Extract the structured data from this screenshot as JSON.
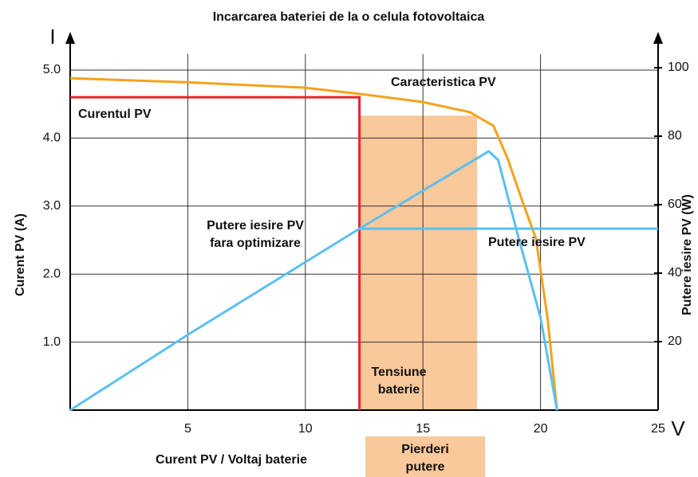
{
  "chart_data": {
    "type": "line",
    "title": "Incarcarea bateriei de la o celula fotovoltaica",
    "x_label": "Curent PV / Voltaj baterie",
    "y_label": "Curent PV (A)",
    "y2_label": "Putere iesire PV (W)",
    "x_axis_symbol": "V",
    "y_axis_symbol": "I",
    "xlim": [
      0,
      25
    ],
    "xticks": [
      5,
      10,
      15,
      20,
      25
    ],
    "ylim": [
      0,
      5
    ],
    "yticks": [
      {
        "value": 1,
        "label": "1.0"
      },
      {
        "value": 2,
        "label": "2.0"
      },
      {
        "value": 3,
        "label": "3.0"
      },
      {
        "value": 4,
        "label": "4.0"
      },
      {
        "value": 5,
        "label": "5.0"
      }
    ],
    "y2lim": [
      0,
      100
    ],
    "y2ticks": [
      20,
      40,
      60,
      80,
      100
    ],
    "grid": true,
    "shade": {
      "x": [
        12.3,
        17.3
      ],
      "y": 4.33,
      "color": "#f9c89b"
    },
    "series": [
      {
        "color": "#f5a21c",
        "x": [
          0,
          5,
          10,
          12.3,
          15,
          17,
          18,
          18.6,
          19.3,
          19.8,
          20.3,
          20.7
        ],
        "values": [
          4.88,
          4.82,
          4.74,
          4.65,
          4.53,
          4.38,
          4.18,
          3.7,
          3.0,
          2.53,
          1.35,
          0
        ]
      },
      {
        "color": "#e8232a",
        "x": [
          0,
          12.3,
          12.3
        ],
        "values": [
          4.6,
          4.6,
          0
        ]
      },
      {
        "color": "#5bc0f0",
        "axis": "y2",
        "x": [
          0,
          5,
          12.3,
          17.8,
          18.2,
          19,
          20,
          20.7
        ],
        "values": [
          0,
          22,
          53,
          75.6,
          73,
          52,
          27,
          0
        ]
      },
      {
        "color": "#5bc0f0",
        "axis": "y2",
        "x": [
          12.3,
          25
        ],
        "values": [
          53,
          53
        ]
      }
    ],
    "annotations": [
      [
        "Caracteristica PV"
      ],
      [
        "Curentul PV"
      ],
      [
        "Putere iesire PV",
        "fara optimizare"
      ],
      [
        "Putere iesire PV"
      ],
      [
        "Tensiune",
        "baterie"
      ],
      [
        "Pierderi",
        "putere"
      ]
    ]
  }
}
